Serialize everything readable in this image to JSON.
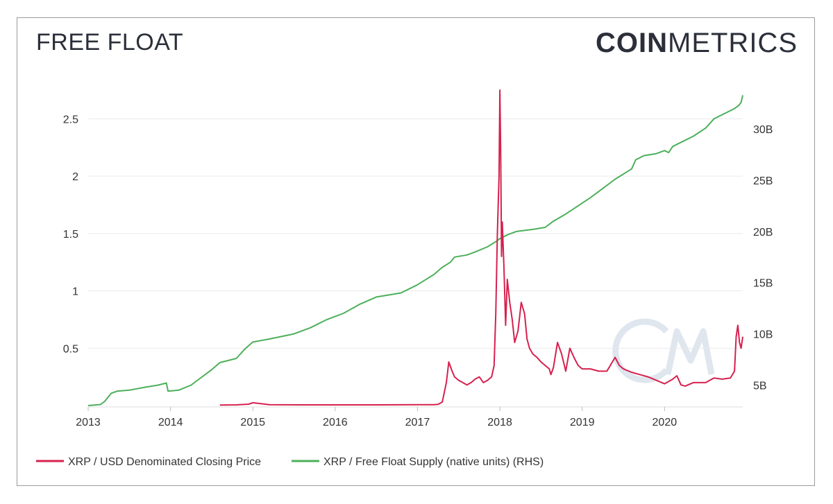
{
  "header": {
    "title": "FREE FLOAT",
    "logo_bold": "COIN",
    "logo_light": "METRICS"
  },
  "colors": {
    "price": "#d6204e",
    "supply": "#4caf5a",
    "grid": "#e9e9e9",
    "watermark": "#dfe6ee"
  },
  "chart_data": {
    "type": "line",
    "x_axis": {
      "ticks": [
        "2013",
        "2014",
        "2015",
        "2016",
        "2017",
        "2018",
        "2019",
        "2020"
      ],
      "range": [
        2013.0,
        2020.95
      ]
    },
    "y_left": {
      "ticks": [
        "0.5",
        "1",
        "1.5",
        "2",
        "2.5"
      ],
      "tick_values": [
        0.5,
        1,
        1.5,
        2,
        2.5
      ],
      "range": [
        0,
        2.75
      ],
      "grid": true
    },
    "y_right": {
      "ticks": [
        "5B",
        "10B",
        "15B",
        "20B",
        "25B",
        "30B"
      ],
      "tick_values": [
        5,
        10,
        15,
        20,
        25,
        30
      ],
      "range": [
        3,
        33.8
      ],
      "unit": "billions"
    },
    "legend_placement": "bottom-left",
    "series": [
      {
        "name": "XRP / USD Denominated Closing Price",
        "axis": "left",
        "x": [
          2014.6,
          2014.8,
          2014.95,
          2015.0,
          2015.2,
          2015.6,
          2016.0,
          2016.5,
          2017.0,
          2017.2,
          2017.25,
          2017.3,
          2017.35,
          2017.38,
          2017.42,
          2017.45,
          2017.5,
          2017.55,
          2017.6,
          2017.65,
          2017.7,
          2017.75,
          2017.8,
          2017.85,
          2017.9,
          2017.93,
          2017.95,
          2017.97,
          2017.99,
          2018.0,
          2018.01,
          2018.02,
          2018.03,
          2018.05,
          2018.07,
          2018.09,
          2018.12,
          2018.15,
          2018.18,
          2018.22,
          2018.26,
          2018.3,
          2018.33,
          2018.36,
          2018.4,
          2018.45,
          2018.5,
          2018.55,
          2018.6,
          2018.62,
          2018.65,
          2018.7,
          2018.75,
          2018.8,
          2018.85,
          2018.9,
          2018.95,
          2019.0,
          2019.1,
          2019.2,
          2019.3,
          2019.4,
          2019.45,
          2019.5,
          2019.6,
          2019.7,
          2019.8,
          2019.9,
          2020.0,
          2020.1,
          2020.15,
          2020.2,
          2020.25,
          2020.35,
          2020.5,
          2020.6,
          2020.7,
          2020.8,
          2020.85,
          2020.87,
          2020.89,
          2020.91,
          2020.93,
          2020.95
        ],
        "y": [
          0.005,
          0.006,
          0.012,
          0.025,
          0.008,
          0.006,
          0.006,
          0.006,
          0.007,
          0.007,
          0.01,
          0.03,
          0.2,
          0.38,
          0.3,
          0.25,
          0.22,
          0.2,
          0.18,
          0.2,
          0.23,
          0.25,
          0.2,
          0.22,
          0.25,
          0.35,
          0.8,
          1.5,
          2.0,
          2.75,
          2.2,
          1.3,
          1.6,
          1.2,
          0.7,
          1.1,
          0.9,
          0.75,
          0.55,
          0.65,
          0.9,
          0.8,
          0.58,
          0.5,
          0.45,
          0.42,
          0.38,
          0.35,
          0.32,
          0.27,
          0.33,
          0.55,
          0.45,
          0.3,
          0.5,
          0.42,
          0.35,
          0.32,
          0.32,
          0.3,
          0.3,
          0.42,
          0.35,
          0.32,
          0.29,
          0.27,
          0.25,
          0.22,
          0.19,
          0.23,
          0.26,
          0.18,
          0.17,
          0.2,
          0.2,
          0.24,
          0.23,
          0.24,
          0.3,
          0.6,
          0.7,
          0.55,
          0.5,
          0.6
        ]
      },
      {
        "name": "XRP / Free Float Supply (native units) (RHS)",
        "axis": "right",
        "x": [
          2013.0,
          2013.15,
          2013.2,
          2013.28,
          2013.35,
          2013.5,
          2013.7,
          2013.85,
          2013.95,
          2013.97,
          2014.1,
          2014.25,
          2014.3,
          2014.5,
          2014.6,
          2014.8,
          2014.9,
          2015.0,
          2015.2,
          2015.5,
          2015.7,
          2015.9,
          2016.1,
          2016.3,
          2016.5,
          2016.65,
          2016.8,
          2017.0,
          2017.1,
          2017.2,
          2017.3,
          2017.4,
          2017.45,
          2017.6,
          2017.7,
          2017.85,
          2017.95,
          2018.0,
          2018.1,
          2018.2,
          2018.3,
          2018.4,
          2018.55,
          2018.65,
          2018.8,
          2018.95,
          2019.1,
          2019.25,
          2019.4,
          2019.6,
          2019.65,
          2019.75,
          2019.9,
          2020.0,
          2020.05,
          2020.1,
          2020.2,
          2020.35,
          2020.5,
          2020.6,
          2020.75,
          2020.85,
          2020.9,
          2020.93,
          2020.95
        ],
        "y": [
          3.0,
          3.1,
          3.4,
          4.2,
          4.4,
          4.5,
          4.8,
          5.0,
          5.2,
          4.4,
          4.5,
          5.0,
          5.3,
          6.5,
          7.2,
          7.6,
          8.5,
          9.2,
          9.5,
          10.0,
          10.6,
          11.4,
          12.0,
          12.9,
          13.6,
          13.8,
          14.0,
          14.8,
          15.3,
          15.8,
          16.5,
          17.0,
          17.5,
          17.7,
          18.0,
          18.5,
          19.0,
          19.3,
          19.7,
          20.0,
          20.1,
          20.2,
          20.4,
          21.0,
          21.7,
          22.5,
          23.3,
          24.2,
          25.1,
          26.1,
          27.0,
          27.4,
          27.6,
          27.9,
          27.7,
          28.3,
          28.7,
          29.3,
          30.1,
          31.0,
          31.6,
          32.0,
          32.3,
          32.6,
          33.3
        ]
      }
    ]
  }
}
